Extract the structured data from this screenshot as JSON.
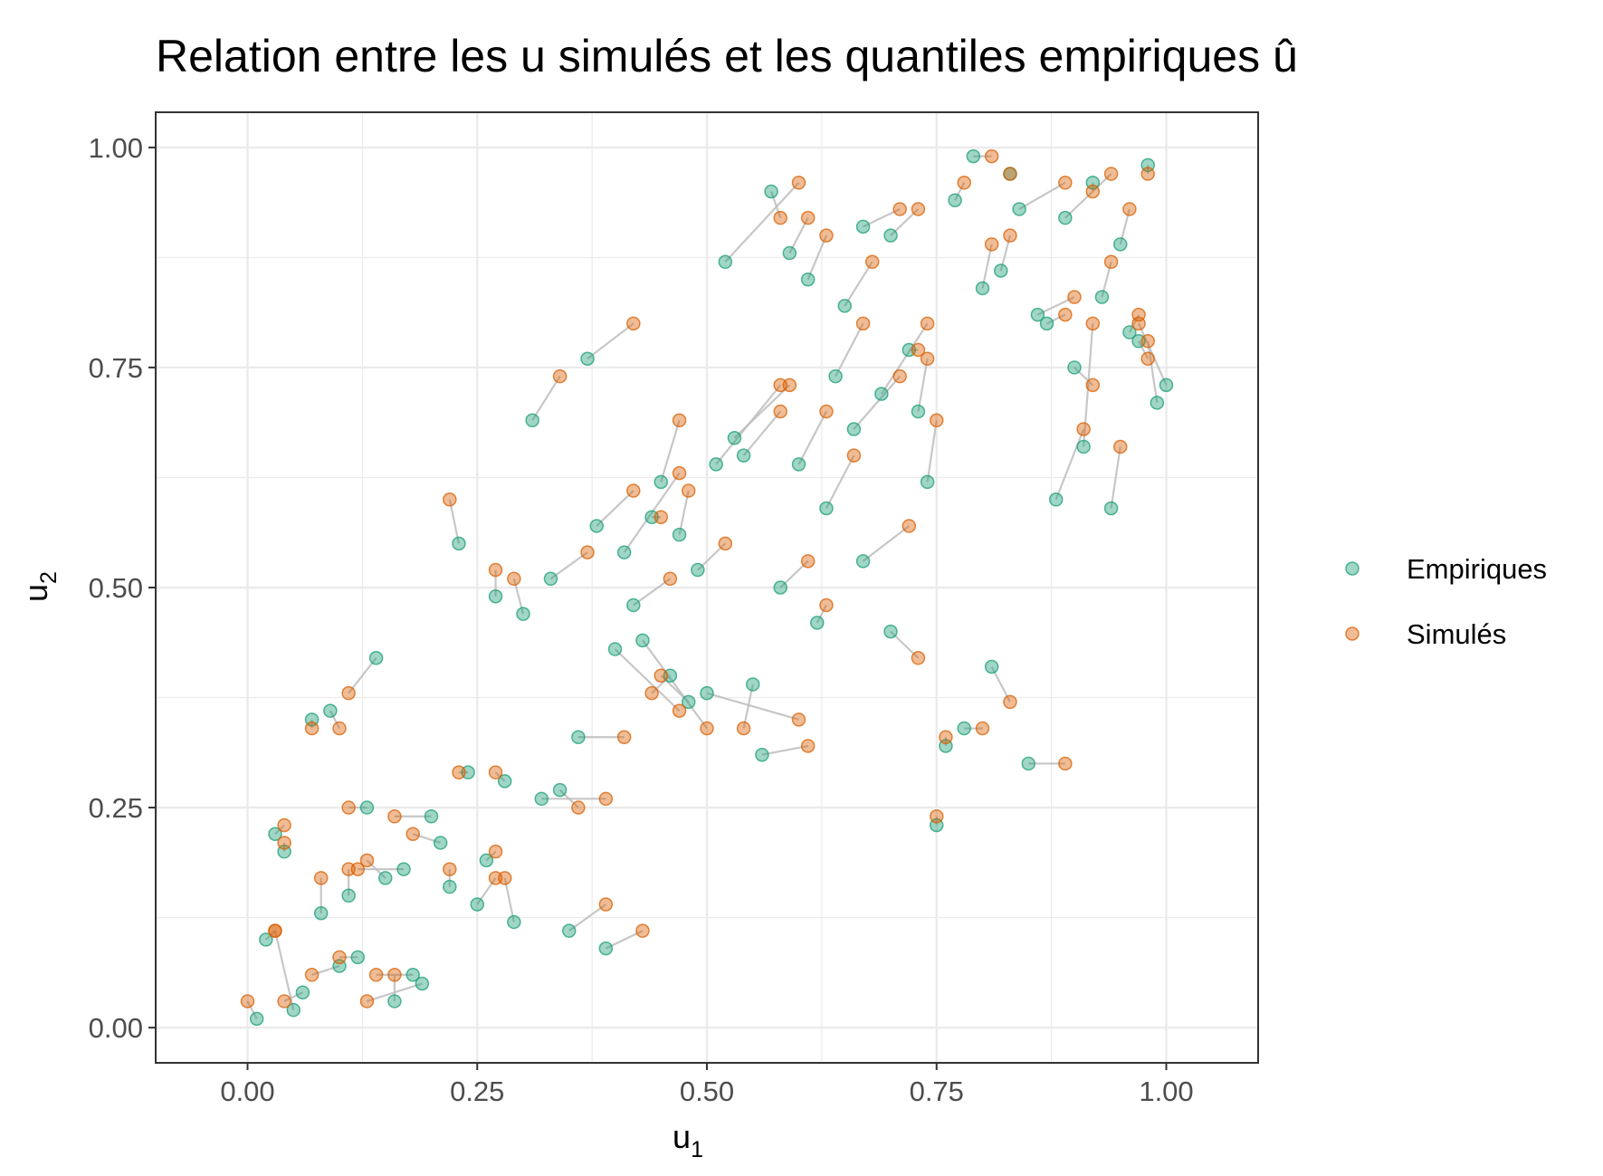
{
  "chart_data": {
    "type": "scatter",
    "title": "Relation entre les u simulés et les quantiles empiriques û",
    "xlabel": "u1",
    "ylabel": "u2",
    "xlim": [
      -0.1,
      1.1
    ],
    "ylim": [
      -0.04,
      1.04
    ],
    "x_ticks": [
      "0.00",
      "0.25",
      "0.50",
      "0.75",
      "1.00"
    ],
    "y_ticks": [
      "0.00",
      "0.25",
      "0.50",
      "0.75",
      "1.00"
    ],
    "grid": true,
    "legend_position": "right",
    "colors": {
      "Empiriques": "#1b9e77",
      "Simulés": "#d95f02",
      "segment": "#bdbdbd",
      "grid": "#ebebeb",
      "border": "#333333"
    },
    "series": [
      {
        "name": "Empiriques",
        "points": [
          [
            0.01,
            0.01
          ],
          [
            0.05,
            0.02
          ],
          [
            0.06,
            0.04
          ],
          [
            0.1,
            0.07
          ],
          [
            0.12,
            0.08
          ],
          [
            0.19,
            0.05
          ],
          [
            0.16,
            0.03
          ],
          [
            0.18,
            0.06
          ],
          [
            0.02,
            0.1
          ],
          [
            0.08,
            0.13
          ],
          [
            0.03,
            0.22
          ],
          [
            0.04,
            0.2
          ],
          [
            0.11,
            0.15
          ],
          [
            0.15,
            0.17
          ],
          [
            0.17,
            0.18
          ],
          [
            0.13,
            0.25
          ],
          [
            0.2,
            0.24
          ],
          [
            0.21,
            0.21
          ],
          [
            0.22,
            0.16
          ],
          [
            0.25,
            0.14
          ],
          [
            0.26,
            0.19
          ],
          [
            0.29,
            0.12
          ],
          [
            0.24,
            0.29
          ],
          [
            0.28,
            0.28
          ],
          [
            0.32,
            0.26
          ],
          [
            0.34,
            0.27
          ],
          [
            0.35,
            0.11
          ],
          [
            0.39,
            0.09
          ],
          [
            0.07,
            0.35
          ],
          [
            0.09,
            0.36
          ],
          [
            0.14,
            0.42
          ],
          [
            0.23,
            0.55
          ],
          [
            0.27,
            0.49
          ],
          [
            0.3,
            0.47
          ],
          [
            0.33,
            0.51
          ],
          [
            0.36,
            0.33
          ],
          [
            0.38,
            0.57
          ],
          [
            0.4,
            0.43
          ],
          [
            0.41,
            0.54
          ],
          [
            0.42,
            0.48
          ],
          [
            0.43,
            0.44
          ],
          [
            0.44,
            0.58
          ],
          [
            0.45,
            0.62
          ],
          [
            0.46,
            0.4
          ],
          [
            0.47,
            0.56
          ],
          [
            0.48,
            0.37
          ],
          [
            0.49,
            0.52
          ],
          [
            0.5,
            0.38
          ],
          [
            0.51,
            0.64
          ],
          [
            0.53,
            0.67
          ],
          [
            0.54,
            0.65
          ],
          [
            0.55,
            0.39
          ],
          [
            0.56,
            0.31
          ],
          [
            0.58,
            0.5
          ],
          [
            0.6,
            0.64
          ],
          [
            0.62,
            0.46
          ],
          [
            0.63,
            0.59
          ],
          [
            0.64,
            0.74
          ],
          [
            0.66,
            0.68
          ],
          [
            0.67,
            0.53
          ],
          [
            0.69,
            0.72
          ],
          [
            0.7,
            0.45
          ],
          [
            0.72,
            0.77
          ],
          [
            0.73,
            0.7
          ],
          [
            0.74,
            0.62
          ],
          [
            0.75,
            0.23
          ],
          [
            0.76,
            0.32
          ],
          [
            0.78,
            0.34
          ],
          [
            0.81,
            0.41
          ],
          [
            0.85,
            0.3
          ],
          [
            0.31,
            0.69
          ],
          [
            0.37,
            0.76
          ],
          [
            0.52,
            0.87
          ],
          [
            0.57,
            0.95
          ],
          [
            0.59,
            0.88
          ],
          [
            0.61,
            0.85
          ],
          [
            0.65,
            0.82
          ],
          [
            0.67,
            0.91
          ],
          [
            0.7,
            0.9
          ],
          [
            0.77,
            0.94
          ],
          [
            0.79,
            0.99
          ],
          [
            0.8,
            0.84
          ],
          [
            0.82,
            0.86
          ],
          [
            0.83,
            0.97
          ],
          [
            0.84,
            0.93
          ],
          [
            0.86,
            0.81
          ],
          [
            0.87,
            0.8
          ],
          [
            0.88,
            0.6
          ],
          [
            0.89,
            0.92
          ],
          [
            0.9,
            0.75
          ],
          [
            0.91,
            0.66
          ],
          [
            0.92,
            0.96
          ],
          [
            0.93,
            0.83
          ],
          [
            0.94,
            0.59
          ],
          [
            0.95,
            0.89
          ],
          [
            0.96,
            0.79
          ],
          [
            0.97,
            0.78
          ],
          [
            0.98,
            0.98
          ],
          [
            0.99,
            0.71
          ],
          [
            1.0,
            0.73
          ]
        ]
      },
      {
        "name": "Simulés",
        "points": [
          [
            0.0,
            0.03
          ],
          [
            0.03,
            0.11
          ],
          [
            0.04,
            0.03
          ],
          [
            0.07,
            0.06
          ],
          [
            0.1,
            0.08
          ],
          [
            0.13,
            0.03
          ],
          [
            0.16,
            0.06
          ],
          [
            0.14,
            0.06
          ],
          [
            0.03,
            0.11
          ],
          [
            0.08,
            0.17
          ],
          [
            0.04,
            0.23
          ],
          [
            0.04,
            0.21
          ],
          [
            0.11,
            0.18
          ],
          [
            0.13,
            0.19
          ],
          [
            0.12,
            0.18
          ],
          [
            0.11,
            0.25
          ],
          [
            0.16,
            0.24
          ],
          [
            0.18,
            0.22
          ],
          [
            0.22,
            0.18
          ],
          [
            0.27,
            0.17
          ],
          [
            0.27,
            0.2
          ],
          [
            0.28,
            0.17
          ],
          [
            0.23,
            0.29
          ],
          [
            0.27,
            0.29
          ],
          [
            0.39,
            0.26
          ],
          [
            0.36,
            0.25
          ],
          [
            0.39,
            0.14
          ],
          [
            0.43,
            0.11
          ],
          [
            0.07,
            0.34
          ],
          [
            0.1,
            0.34
          ],
          [
            0.11,
            0.38
          ],
          [
            0.22,
            0.6
          ],
          [
            0.27,
            0.52
          ],
          [
            0.29,
            0.51
          ],
          [
            0.37,
            0.54
          ],
          [
            0.41,
            0.33
          ],
          [
            0.42,
            0.61
          ],
          [
            0.47,
            0.36
          ],
          [
            0.47,
            0.63
          ],
          [
            0.46,
            0.51
          ],
          [
            0.5,
            0.34
          ],
          [
            0.45,
            0.58
          ],
          [
            0.47,
            0.69
          ],
          [
            0.44,
            0.38
          ],
          [
            0.48,
            0.61
          ],
          [
            0.45,
            0.4
          ],
          [
            0.52,
            0.55
          ],
          [
            0.6,
            0.35
          ],
          [
            0.58,
            0.73
          ],
          [
            0.59,
            0.73
          ],
          [
            0.58,
            0.7
          ],
          [
            0.54,
            0.34
          ],
          [
            0.61,
            0.32
          ],
          [
            0.61,
            0.53
          ],
          [
            0.63,
            0.7
          ],
          [
            0.63,
            0.48
          ],
          [
            0.66,
            0.65
          ],
          [
            0.67,
            0.8
          ],
          [
            0.71,
            0.74
          ],
          [
            0.72,
            0.57
          ],
          [
            0.74,
            0.8
          ],
          [
            0.73,
            0.42
          ],
          [
            0.73,
            0.77
          ],
          [
            0.74,
            0.76
          ],
          [
            0.75,
            0.69
          ],
          [
            0.75,
            0.24
          ],
          [
            0.76,
            0.33
          ],
          [
            0.8,
            0.34
          ],
          [
            0.83,
            0.37
          ],
          [
            0.89,
            0.3
          ],
          [
            0.34,
            0.74
          ],
          [
            0.42,
            0.8
          ],
          [
            0.6,
            0.96
          ],
          [
            0.58,
            0.92
          ],
          [
            0.61,
            0.92
          ],
          [
            0.63,
            0.9
          ],
          [
            0.68,
            0.87
          ],
          [
            0.71,
            0.93
          ],
          [
            0.73,
            0.93
          ],
          [
            0.78,
            0.96
          ],
          [
            0.81,
            0.99
          ],
          [
            0.81,
            0.89
          ],
          [
            0.83,
            0.9
          ],
          [
            0.83,
            0.97
          ],
          [
            0.89,
            0.96
          ],
          [
            0.9,
            0.83
          ],
          [
            0.89,
            0.81
          ],
          [
            0.91,
            0.68
          ],
          [
            0.94,
            0.97
          ],
          [
            0.92,
            0.73
          ],
          [
            0.92,
            0.8
          ],
          [
            0.92,
            0.95
          ],
          [
            0.94,
            0.87
          ],
          [
            0.95,
            0.66
          ],
          [
            0.96,
            0.93
          ],
          [
            0.97,
            0.81
          ],
          [
            0.98,
            0.76
          ],
          [
            0.98,
            0.97
          ],
          [
            0.98,
            0.78
          ],
          [
            0.97,
            0.8
          ]
        ]
      }
    ]
  }
}
